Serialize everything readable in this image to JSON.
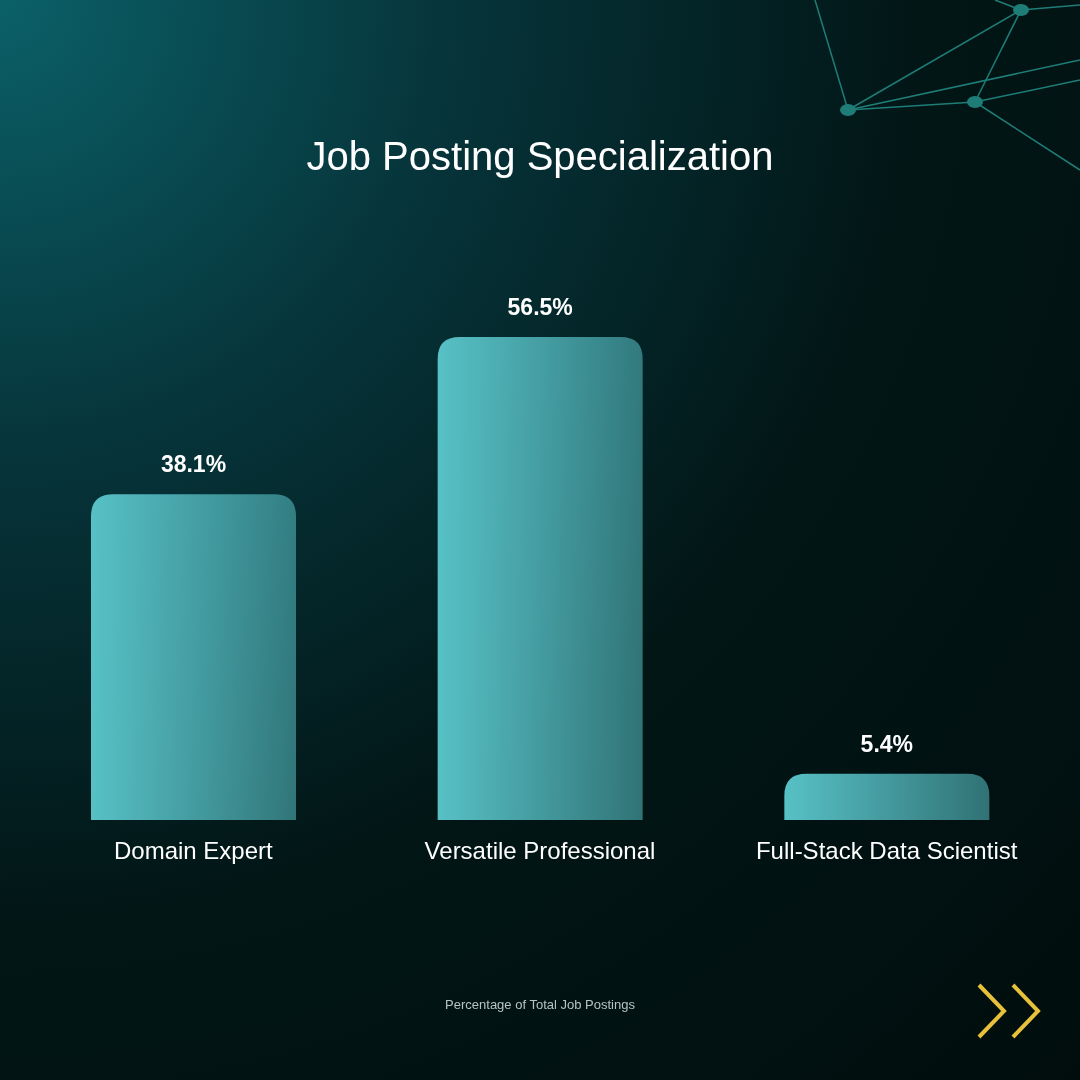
{
  "chart_data": {
    "type": "bar",
    "title": "Job Posting Specialization",
    "categories": [
      "Domain Expert",
      "Versatile Professional",
      "Full-Stack Data Scientist"
    ],
    "values": [
      38.1,
      56.5,
      5.4
    ],
    "value_labels": [
      "38.1%",
      "56.5%",
      "5.4%"
    ],
    "color": "#57c1c6",
    "annotations": [
      "Percentage of Total Job Postings"
    ]
  }
}
